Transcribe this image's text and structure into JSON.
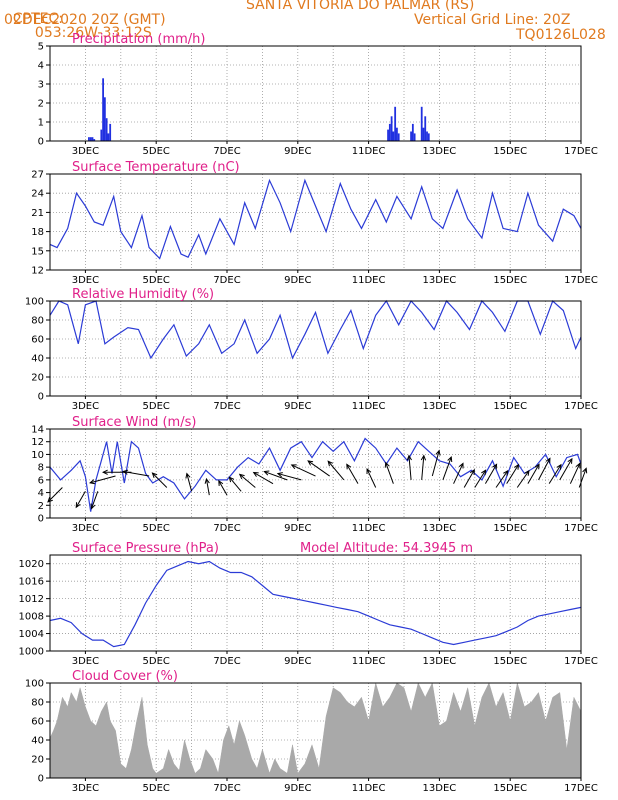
{
  "header": {
    "line1_left": "CPTEC:",
    "line1_coords": "053:26W-33:12S",
    "line1_station": "SANTA VITORIA DO PALMAR (RS)",
    "line2_left": "02DEC2020 20Z (GMT)",
    "line2_right": "Vertical Grid Line: 20Z",
    "line3_right": "TQ0126L028"
  },
  "colors": {
    "header": "#e07a1f",
    "panel_title": "#e0208a",
    "series_line": "#2b3bd6",
    "precip_bar": "#2030e0",
    "cloud_fill": "#a9a9a9",
    "wind_arrow": "#000000",
    "grid": "#9a9a9a"
  },
  "x_axis": {
    "labels": [
      "3DEC",
      "5DEC",
      "7DEC",
      "9DEC",
      "11DEC",
      "13DEC",
      "15DEC",
      "17DEC"
    ],
    "label_days": [
      3,
      5,
      7,
      9,
      11,
      13,
      15,
      17
    ],
    "start_day": 2.0,
    "end_day": 17.0,
    "grid_every_days": 1,
    "grid_hour": "20Z"
  },
  "chart_data": [
    {
      "type": "bar",
      "title": "Precipitation (mm/h)",
      "ylim": [
        0,
        5
      ],
      "yticks": [
        0,
        1,
        2,
        3,
        4,
        5
      ],
      "grid": true,
      "x_days": [
        3.1,
        3.15,
        3.2,
        3.25,
        3.45,
        3.5,
        3.55,
        3.6,
        3.65,
        3.7,
        11.55,
        11.6,
        11.65,
        11.7,
        11.75,
        11.8,
        11.85,
        12.2,
        12.25,
        12.3,
        12.5,
        12.55,
        12.6,
        12.65,
        12.7
      ],
      "values": [
        0.2,
        0.2,
        0.2,
        0.1,
        0.6,
        3.3,
        2.3,
        1.2,
        0.4,
        0.9,
        0.6,
        0.9,
        1.3,
        0.5,
        1.8,
        0.7,
        0.4,
        0.5,
        0.9,
        0.4,
        1.8,
        0.7,
        1.3,
        0.5,
        0.4
      ]
    },
    {
      "type": "line",
      "title": "Surface Temperature (nC)",
      "ylim": [
        12,
        27
      ],
      "yticks": [
        12,
        15,
        18,
        21,
        24,
        27
      ],
      "grid": true,
      "series": [
        {
          "x": [
            2.0,
            2.2,
            2.5,
            2.75,
            3.0,
            3.25,
            3.5,
            3.8,
            4.0,
            4.3,
            4.6,
            4.8,
            5.1,
            5.4,
            5.7,
            5.9,
            6.2,
            6.4,
            6.8,
            7.2,
            7.5,
            7.8,
            8.2,
            8.5,
            8.8,
            9.2,
            9.5,
            9.8,
            10.2,
            10.5,
            10.8,
            11.2,
            11.5,
            11.8,
            12.2,
            12.5,
            12.8,
            13.1,
            13.5,
            13.8,
            14.2,
            14.5,
            14.8,
            15.2,
            15.5,
            15.8,
            16.2,
            16.5,
            16.8,
            17.0
          ],
          "values": [
            16.0,
            15.5,
            18.5,
            24.0,
            22.0,
            19.5,
            19.0,
            23.5,
            18.0,
            15.5,
            20.5,
            15.5,
            13.8,
            18.8,
            14.5,
            14.0,
            17.5,
            14.5,
            20.0,
            16.0,
            22.5,
            18.5,
            26.0,
            22.5,
            18.0,
            26.0,
            22.0,
            18.0,
            25.5,
            21.5,
            18.5,
            23.0,
            19.5,
            23.5,
            20.0,
            25.0,
            20.0,
            18.5,
            24.5,
            20.0,
            17.0,
            24.0,
            18.5,
            18.0,
            24.0,
            19.0,
            16.5,
            21.5,
            20.5,
            18.5
          ]
        }
      ]
    },
    {
      "type": "line",
      "title": "Relative Humidity (%)",
      "ylim": [
        0,
        100
      ],
      "yticks": [
        0,
        20,
        40,
        60,
        80,
        100
      ],
      "grid": true,
      "series": [
        {
          "x": [
            2.0,
            2.25,
            2.5,
            2.8,
            3.0,
            3.3,
            3.55,
            3.8,
            4.2,
            4.5,
            4.85,
            5.2,
            5.5,
            5.85,
            6.2,
            6.5,
            6.85,
            7.2,
            7.5,
            7.85,
            8.2,
            8.5,
            8.85,
            9.2,
            9.5,
            9.85,
            10.2,
            10.5,
            10.85,
            11.2,
            11.5,
            11.85,
            12.2,
            12.5,
            12.85,
            13.2,
            13.5,
            13.85,
            14.2,
            14.5,
            14.85,
            15.2,
            15.5,
            15.85,
            16.2,
            16.5,
            16.85,
            17.0
          ],
          "values": [
            85.0,
            100.0,
            96.0,
            55.0,
            96.0,
            100.0,
            55.0,
            62.0,
            72.0,
            70.0,
            40.0,
            60.0,
            75.0,
            42.0,
            55.0,
            75.0,
            45.0,
            55.0,
            80.0,
            45.0,
            60.0,
            85.0,
            40.0,
            65.0,
            88.0,
            45.0,
            70.0,
            90.0,
            50.0,
            85.0,
            100.0,
            75.0,
            100.0,
            88.0,
            70.0,
            100.0,
            88.0,
            70.0,
            100.0,
            88.0,
            68.0,
            100.0,
            100.0,
            65.0,
            100.0,
            90.0,
            50.0,
            62.0
          ]
        }
      ]
    },
    {
      "type": "line",
      "title": "Surface Wind (m/s)",
      "ylim": [
        0,
        14
      ],
      "yticks": [
        0,
        2,
        4,
        6,
        8,
        10,
        12,
        14
      ],
      "grid": true,
      "series": [
        {
          "x": [
            2.0,
            2.3,
            2.6,
            2.85,
            3.0,
            3.15,
            3.3,
            3.45,
            3.6,
            3.75,
            3.9,
            4.1,
            4.3,
            4.5,
            4.7,
            4.9,
            5.2,
            5.5,
            5.8,
            6.1,
            6.4,
            6.7,
            7.0,
            7.3,
            7.6,
            7.9,
            8.2,
            8.5,
            8.8,
            9.1,
            9.4,
            9.7,
            10.0,
            10.3,
            10.6,
            10.9,
            11.2,
            11.5,
            11.8,
            12.1,
            12.4,
            12.7,
            13.0,
            13.3,
            13.6,
            13.9,
            14.2,
            14.5,
            14.8,
            15.1,
            15.4,
            15.7,
            16.0,
            16.3,
            16.6,
            16.9,
            17.0
          ],
          "values": [
            8.0,
            6.0,
            7.5,
            9.0,
            6.5,
            1.0,
            6.0,
            9.0,
            12.0,
            7.0,
            12.0,
            5.5,
            12.0,
            11.0,
            7.0,
            5.5,
            6.5,
            5.5,
            3.0,
            5.0,
            7.5,
            6.0,
            6.0,
            8.0,
            9.5,
            8.5,
            11.0,
            7.5,
            11.0,
            12.0,
            9.5,
            12.0,
            10.5,
            12.0,
            9.0,
            12.5,
            11.0,
            8.5,
            11.0,
            9.0,
            12.0,
            10.5,
            9.0,
            8.5,
            6.5,
            7.5,
            6.0,
            9.0,
            5.0,
            9.5,
            7.0,
            8.0,
            10.0,
            6.5,
            9.5,
            10.0,
            8.5
          ]
        }
      ],
      "arrow_days": [
        2.35,
        3.0,
        3.35,
        3.85,
        4.3,
        4.8,
        5.3,
        6.0,
        6.5,
        7.0,
        7.4,
        7.8,
        8.3,
        8.7,
        9.1,
        9.5,
        9.9,
        10.3,
        10.7,
        11.2,
        11.7,
        12.2,
        12.5,
        12.8,
        13.1,
        13.4,
        13.7,
        14.0,
        14.3,
        14.6,
        14.9,
        15.2,
        15.5,
        15.8,
        16.1,
        16.4,
        16.7,
        16.95
      ],
      "arrow_direction_deg": [
        225,
        240,
        250,
        195,
        180,
        170,
        135,
        105,
        100,
        120,
        130,
        140,
        150,
        160,
        165,
        155,
        145,
        130,
        120,
        115,
        110,
        95,
        85,
        75,
        70,
        65,
        60,
        58,
        60,
        55,
        58,
        55,
        60,
        62,
        58,
        60,
        65,
        70
      ],
      "arrow_speed": [
        8,
        7,
        7,
        11,
        12,
        11,
        8,
        7,
        6,
        6,
        7,
        8,
        9,
        10,
        10,
        11,
        11,
        10,
        9,
        8,
        9,
        10,
        10,
        11,
        10,
        9,
        8,
        8,
        9,
        8,
        9,
        8,
        9,
        10,
        9,
        10,
        9,
        8
      ]
    },
    {
      "type": "line",
      "title": "Surface Pressure (hPa)",
      "subtitle": "Model Altitude: 54.3945 m",
      "ylim": [
        1000,
        1022
      ],
      "yticks": [
        1000,
        1004,
        1008,
        1012,
        1016,
        1020
      ],
      "grid": true,
      "series": [
        {
          "x": [
            2.0,
            2.3,
            2.6,
            2.9,
            3.2,
            3.5,
            3.8,
            4.1,
            4.4,
            4.7,
            5.0,
            5.3,
            5.6,
            5.9,
            6.2,
            6.5,
            6.8,
            7.1,
            7.4,
            7.7,
            8.0,
            8.3,
            8.6,
            8.9,
            9.2,
            9.5,
            9.8,
            10.1,
            10.4,
            10.7,
            11.0,
            11.3,
            11.6,
            11.9,
            12.2,
            12.5,
            12.8,
            13.1,
            13.4,
            13.7,
            14.0,
            14.3,
            14.6,
            14.9,
            15.2,
            15.5,
            15.8,
            16.1,
            16.4,
            16.7,
            17.0
          ],
          "values": [
            1007.0,
            1007.5,
            1006.5,
            1004.0,
            1002.5,
            1002.5,
            1001.0,
            1001.5,
            1006.0,
            1011.0,
            1015.0,
            1018.5,
            1019.5,
            1020.5,
            1020.0,
            1020.5,
            1019.0,
            1018.0,
            1018.0,
            1017.0,
            1015.0,
            1013.0,
            1012.5,
            1012.0,
            1011.5,
            1011.0,
            1010.5,
            1010.0,
            1009.5,
            1009.0,
            1008.0,
            1007.0,
            1006.0,
            1005.5,
            1005.0,
            1004.0,
            1003.0,
            1002.0,
            1001.5,
            1002.0,
            1002.5,
            1003.0,
            1003.5,
            1004.5,
            1005.5,
            1007.0,
            1008.0,
            1008.5,
            1009.0,
            1009.5,
            1010.0
          ]
        }
      ]
    },
    {
      "type": "area",
      "title": "Cloud Cover (%)",
      "ylim": [
        0,
        100
      ],
      "yticks": [
        0,
        20,
        40,
        60,
        80,
        100
      ],
      "grid": true,
      "series": [
        {
          "x": [
            2.0,
            2.1,
            2.2,
            2.35,
            2.5,
            2.6,
            2.75,
            2.85,
            3.0,
            3.15,
            3.3,
            3.45,
            3.6,
            3.7,
            3.85,
            4.0,
            4.15,
            4.3,
            4.45,
            4.6,
            4.75,
            4.9,
            5.0,
            5.2,
            5.35,
            5.5,
            5.65,
            5.8,
            5.95,
            6.1,
            6.25,
            6.4,
            6.6,
            6.75,
            6.9,
            7.05,
            7.2,
            7.35,
            7.5,
            7.7,
            7.85,
            8.0,
            8.2,
            8.35,
            8.5,
            8.7,
            8.85,
            9.0,
            9.2,
            9.4,
            9.6,
            9.8,
            10.0,
            10.2,
            10.4,
            10.6,
            10.8,
            11.0,
            11.2,
            11.4,
            11.6,
            11.8,
            12.0,
            12.2,
            12.4,
            12.6,
            12.8,
            13.0,
            13.2,
            13.4,
            13.6,
            13.8,
            14.0,
            14.2,
            14.4,
            14.6,
            14.8,
            15.0,
            15.2,
            15.4,
            15.6,
            15.8,
            16.0,
            16.2,
            16.4,
            16.6,
            16.8,
            17.0
          ],
          "values": [
            42,
            50,
            60,
            85,
            75,
            90,
            80,
            95,
            75,
            60,
            55,
            70,
            80,
            60,
            50,
            15,
            10,
            30,
            60,
            85,
            35,
            10,
            5,
            10,
            30,
            15,
            8,
            40,
            20,
            5,
            10,
            30,
            20,
            5,
            40,
            55,
            35,
            60,
            45,
            20,
            10,
            30,
            5,
            20,
            10,
            5,
            35,
            5,
            15,
            35,
            10,
            65,
            95,
            90,
            80,
            75,
            85,
            60,
            100,
            75,
            85,
            100,
            95,
            70,
            100,
            85,
            100,
            55,
            60,
            90,
            70,
            95,
            55,
            85,
            100,
            75,
            90,
            60,
            100,
            75,
            80,
            90,
            60,
            85,
            90,
            30,
            85,
            70
          ]
        }
      ]
    }
  ]
}
